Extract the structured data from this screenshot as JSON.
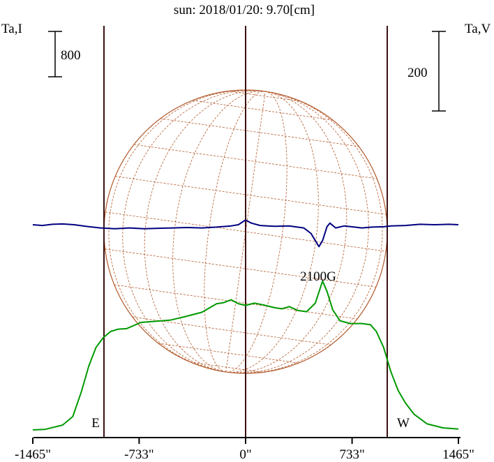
{
  "chart_data": {
    "type": "line",
    "title": "sun: 2018/01/20: 9.70[cm]",
    "ylabel_left": "Ta,I",
    "ylabel_right": "Ta,V",
    "scale_left": "800",
    "scale_right": "200",
    "limb_labels": {
      "east": "E",
      "west": "W"
    },
    "xticks": [
      {
        "value": -1465,
        "label": "-1465\""
      },
      {
        "value": -733,
        "label": "-733\""
      },
      {
        "value": 0,
        "label": "0\""
      },
      {
        "value": 733,
        "label": "733\""
      },
      {
        "value": 1465,
        "label": "1465\""
      }
    ],
    "xlim": [
      -1465,
      1465
    ],
    "solar_limbs": [
      -975,
      975
    ],
    "annotation": {
      "text": "2100G",
      "x": 505
    },
    "series": [
      {
        "key": "I",
        "color": "#009900",
        "points": [
          [
            -1465,
            25
          ],
          [
            -1380,
            35
          ],
          [
            -1260,
            110
          ],
          [
            -1190,
            260
          ],
          [
            -1130,
            700
          ],
          [
            -1080,
            1150
          ],
          [
            -1030,
            1480
          ],
          [
            -980,
            1650
          ],
          [
            -930,
            1760
          ],
          [
            -880,
            1800
          ],
          [
            -820,
            1810
          ],
          [
            -720,
            1920
          ],
          [
            -620,
            1940
          ],
          [
            -520,
            1960
          ],
          [
            -420,
            2020
          ],
          [
            -300,
            2100
          ],
          [
            -200,
            2250
          ],
          [
            -150,
            2270
          ],
          [
            -100,
            2320
          ],
          [
            -50,
            2250
          ],
          [
            0,
            2220
          ],
          [
            60,
            2260
          ],
          [
            120,
            2230
          ],
          [
            200,
            2180
          ],
          [
            250,
            2160
          ],
          [
            300,
            2200
          ],
          [
            360,
            2130
          ],
          [
            420,
            2110
          ],
          [
            480,
            2260
          ],
          [
            530,
            2650
          ],
          [
            560,
            2470
          ],
          [
            600,
            2140
          ],
          [
            650,
            1950
          ],
          [
            720,
            1900
          ],
          [
            800,
            1900
          ],
          [
            860,
            1880
          ],
          [
            900,
            1760
          ],
          [
            950,
            1480
          ],
          [
            1000,
            1050
          ],
          [
            1050,
            720
          ],
          [
            1100,
            500
          ],
          [
            1160,
            300
          ],
          [
            1250,
            130
          ],
          [
            1360,
            60
          ],
          [
            1465,
            40
          ]
        ]
      },
      {
        "key": "V",
        "color": "#000080",
        "points": [
          [
            -1465,
            0
          ],
          [
            -1400,
            -2
          ],
          [
            -1330,
            1
          ],
          [
            -1260,
            2
          ],
          [
            -1180,
            0
          ],
          [
            -1100,
            -4
          ],
          [
            -1000,
            -8
          ],
          [
            -900,
            -10
          ],
          [
            -800,
            -8
          ],
          [
            -700,
            -10
          ],
          [
            -600,
            -9
          ],
          [
            -500,
            -8
          ],
          [
            -400,
            -7
          ],
          [
            -300,
            -8
          ],
          [
            -200,
            -6
          ],
          [
            -100,
            -3
          ],
          [
            -50,
            0
          ],
          [
            0,
            12
          ],
          [
            40,
            4
          ],
          [
            100,
            -2
          ],
          [
            200,
            -4
          ],
          [
            300,
            -3
          ],
          [
            400,
            -8
          ],
          [
            450,
            -22
          ],
          [
            480,
            -40
          ],
          [
            505,
            -55
          ],
          [
            530,
            -40
          ],
          [
            560,
            -5
          ],
          [
            580,
            4
          ],
          [
            620,
            -8
          ],
          [
            680,
            -3
          ],
          [
            750,
            -6
          ],
          [
            800,
            -8
          ],
          [
            870,
            -6
          ],
          [
            950,
            -5
          ],
          [
            1000,
            -3
          ],
          [
            1100,
            -2
          ],
          [
            1200,
            1
          ],
          [
            1300,
            0
          ],
          [
            1400,
            1
          ],
          [
            1465,
            0
          ]
        ]
      }
    ],
    "grid": false
  }
}
